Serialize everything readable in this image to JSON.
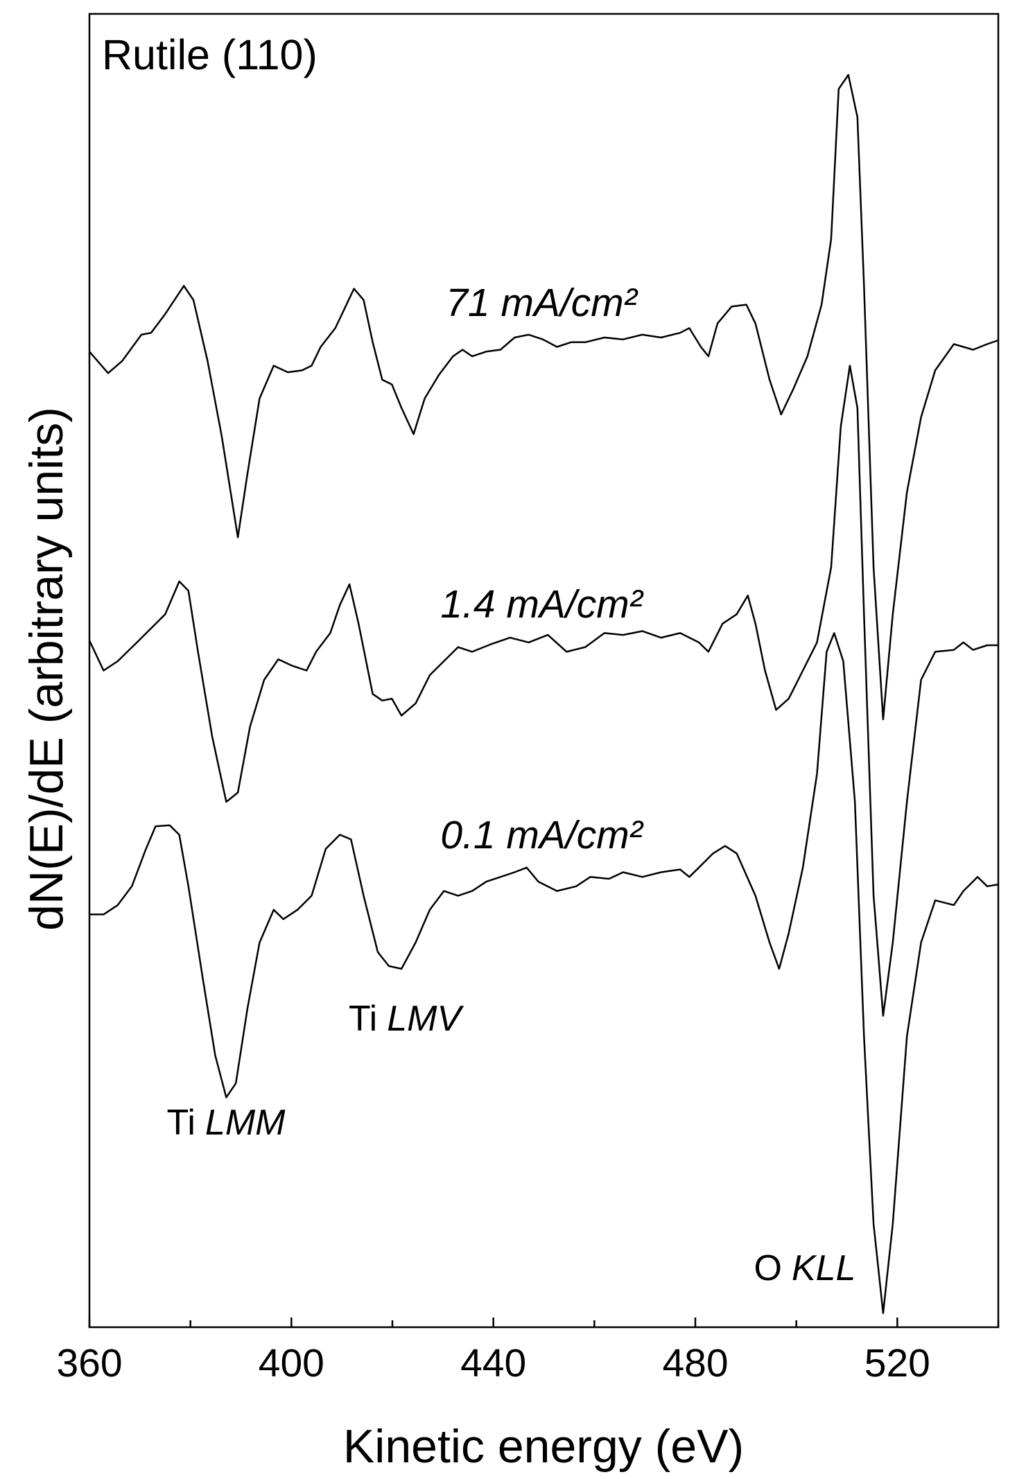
{
  "chart_data": {
    "type": "line",
    "title": "Rutile (110)",
    "x_label": "Kinetic energy (eV)",
    "y_label": "dN(E)/dE (arbitrary units)",
    "xlim": [
      360,
      540
    ],
    "xticks": [
      360,
      400,
      440,
      480,
      520
    ],
    "minor_xticks": [
      380,
      420,
      460,
      500,
      540
    ],
    "ylim": [
      0,
      140
    ],
    "grid": false,
    "series": [
      {
        "name": "71 mA/cm²",
        "color": "#000000",
        "x": [
          360,
          363.7,
          366.5,
          370.3,
          372.2,
          375.0,
          378.7,
          380.6,
          383.4,
          386.2,
          389.4,
          391.3,
          393.7,
          396.5,
          399.3,
          402.1,
          404.0,
          405.8,
          408.7,
          412.4,
          414.3,
          416.1,
          418.0,
          419.9,
          421.8,
          424.2,
          426.4,
          429.2,
          432.0,
          433.9,
          435.8,
          438.6,
          441.4,
          444.2,
          447.0,
          449.8,
          452.6,
          455.4,
          458.2,
          462.0,
          465.7,
          469.5,
          473.2,
          477.0,
          478.8,
          481.1,
          482.6,
          484.4,
          487.2,
          490.1,
          491.9,
          494.7,
          497.0,
          499.4,
          502.2,
          505.0,
          506.9,
          508.4,
          510.3,
          512.1,
          513.4,
          515.3,
          517.2,
          519.1,
          521.9,
          524.7,
          527.5,
          531.2,
          535.0,
          537.8,
          540
        ],
        "values": [
          104,
          101.7,
          103,
          105.8,
          106,
          108,
          111,
          109.5,
          103,
          95,
          84.2,
          91,
          99,
          102.5,
          101.8,
          102,
          102.5,
          104.5,
          106.5,
          110.7,
          109.5,
          105,
          101,
          100.5,
          98,
          95.2,
          99,
          101.5,
          103.5,
          104.2,
          103.5,
          104,
          104.2,
          105.5,
          105.8,
          105.3,
          104.5,
          105,
          105,
          105.5,
          105.3,
          105.8,
          105.5,
          106,
          106.5,
          104.5,
          103.5,
          107,
          108.8,
          109,
          107,
          101,
          97.3,
          100,
          103.5,
          109,
          116,
          132,
          133.5,
          129,
          111,
          81,
          64.8,
          76,
          89,
          97,
          102,
          104.8,
          104.2,
          104.8,
          105.2
        ]
      },
      {
        "name": "1.4 mA/cm²",
        "color": "#000000",
        "x": [
          360,
          362.8,
          365.6,
          369.4,
          372.2,
          375.0,
          377.8,
          379.6,
          381.5,
          384.3,
          387.1,
          389.4,
          391.8,
          394.6,
          397.4,
          400.2,
          403.0,
          404.9,
          407.7,
          409.6,
          411.5,
          413.3,
          416.1,
          418.0,
          419.9,
          421.8,
          424.6,
          427.4,
          430.2,
          433.0,
          435.8,
          439.5,
          443.3,
          447.0,
          450.8,
          454.5,
          458.2,
          462.0,
          465.7,
          469.5,
          473.2,
          477.0,
          480.7,
          482.6,
          485.4,
          488.2,
          490.4,
          491.9,
          493.8,
          496.0,
          498.5,
          501.3,
          504.1,
          506.9,
          508.8,
          510.6,
          512.1,
          513.4,
          515.3,
          517.2,
          519.1,
          521.9,
          524.7,
          527.5,
          531.2,
          533.1,
          535.0,
          537.8,
          540
        ],
        "values": [
          73.2,
          70,
          71,
          73,
          74.5,
          76,
          79.5,
          78.5,
          72,
          63,
          56,
          57,
          64,
          69,
          71.2,
          70.5,
          70,
          72,
          74,
          77,
          79.2,
          75,
          67.5,
          66.8,
          67,
          65.2,
          66.5,
          69.5,
          71,
          72.5,
          72,
          72.8,
          73.5,
          73,
          73.8,
          72,
          72.5,
          74,
          73.8,
          74.2,
          73.5,
          74,
          73,
          72,
          75,
          76,
          78,
          75,
          70,
          65.8,
          67,
          70,
          73,
          81,
          96,
          102.5,
          98,
          76,
          46,
          33.2,
          41,
          56,
          69,
          72,
          72.2,
          73,
          72.2,
          72.7,
          72.7
        ]
      },
      {
        "name": "0.1 mA/cm²",
        "color": "#000000",
        "x": [
          360,
          362.8,
          365.6,
          368.4,
          371.2,
          373.1,
          375.9,
          377.8,
          379.6,
          382.5,
          384.9,
          387.1,
          389.0,
          391.3,
          393.7,
          396.5,
          398.4,
          401.2,
          404.0,
          406.8,
          409.6,
          411.8,
          414.3,
          417.1,
          419.3,
          421.8,
          424.6,
          427.4,
          430.2,
          433.0,
          435.8,
          438.6,
          441.4,
          444.2,
          446.6,
          448.9,
          452.6,
          456.4,
          459.2,
          462.9,
          465.7,
          469.5,
          473.2,
          477.0,
          478.8,
          480.7,
          483.5,
          485.9,
          488.2,
          491.9,
          494.7,
          496.6,
          498.5,
          501.3,
          504.1,
          506.0,
          507.5,
          509.3,
          511.6,
          513.4,
          515.3,
          517.2,
          519.1,
          521.9,
          524.7,
          527.5,
          531.2,
          533.1,
          535.9,
          537.8,
          540
        ],
        "values": [
          44,
          44,
          45,
          47,
          51,
          53.4,
          53.5,
          52.5,
          47,
          37,
          29,
          24.5,
          26,
          34,
          41,
          44.5,
          43.5,
          44.5,
          46,
          51,
          52.5,
          52,
          46,
          40,
          38.5,
          38.2,
          41,
          44.5,
          46.5,
          46,
          46.5,
          47.5,
          48,
          48.5,
          49,
          47.5,
          46.5,
          47,
          48,
          47.8,
          48.5,
          48,
          48.5,
          48.8,
          48,
          49,
          50.5,
          51.3,
          50.5,
          46,
          41,
          38.2,
          42,
          49,
          59,
          72,
          74,
          71,
          56,
          31,
          11,
          1.5,
          11,
          31,
          41,
          45.5,
          45,
          46.5,
          48,
          47,
          47.2
        ]
      }
    ],
    "annotations": [
      [
        "Ti",
        "LMM"
      ],
      [
        "Ti",
        "LMV"
      ],
      [
        "O",
        "KLL"
      ]
    ]
  }
}
